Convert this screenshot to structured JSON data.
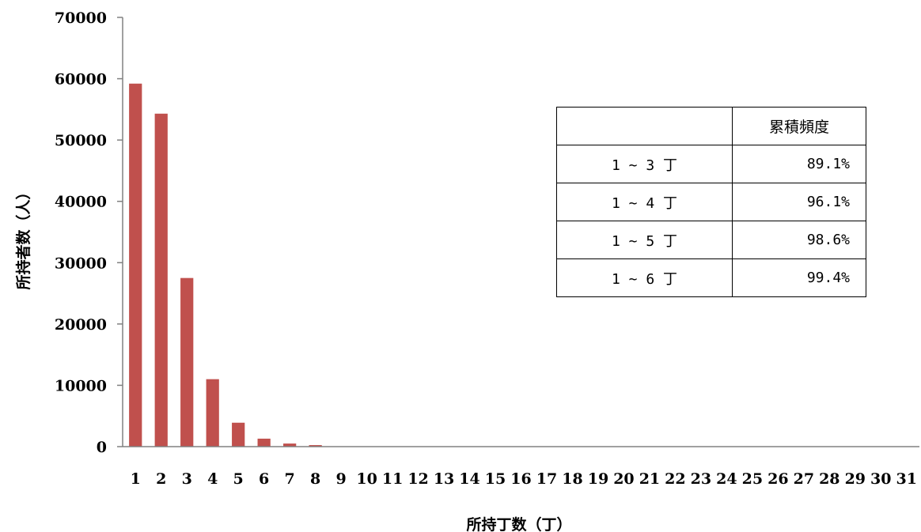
{
  "chart_data": {
    "type": "bar",
    "xlabel": "所持丁数（丁）",
    "ylabel": "所持者数（人）",
    "ylim": [
      0,
      70000
    ],
    "yticks": [
      0,
      10000,
      20000,
      30000,
      40000,
      50000,
      60000,
      70000
    ],
    "categories": [
      "1",
      "2",
      "3",
      "4",
      "5",
      "6",
      "7",
      "8",
      "9",
      "10",
      "11",
      "12",
      "13",
      "14",
      "15",
      "16",
      "17",
      "18",
      "19",
      "20",
      "21",
      "22",
      "23",
      "24",
      "25",
      "26",
      "27",
      "28",
      "29",
      "30",
      "31"
    ],
    "values": [
      59200,
      54300,
      27500,
      11000,
      3900,
      1300,
      500,
      250,
      60,
      30,
      20,
      10,
      5,
      5,
      0,
      0,
      0,
      0,
      0,
      0,
      0,
      0,
      0,
      0,
      0,
      0,
      0,
      0,
      0,
      0,
      0
    ],
    "bar_color": "#C0504D",
    "grid": false,
    "legend": "none"
  },
  "table": {
    "header": [
      "",
      "累積頻度"
    ],
    "rows": [
      {
        "range": "1 ~ 3 丁",
        "value": "89.1%"
      },
      {
        "range": "1 ~ 4 丁",
        "value": "96.1%"
      },
      {
        "range": "1 ~ 5 丁",
        "value": "98.6%"
      },
      {
        "range": "1 ~ 6 丁",
        "value": "99.4%"
      }
    ]
  }
}
